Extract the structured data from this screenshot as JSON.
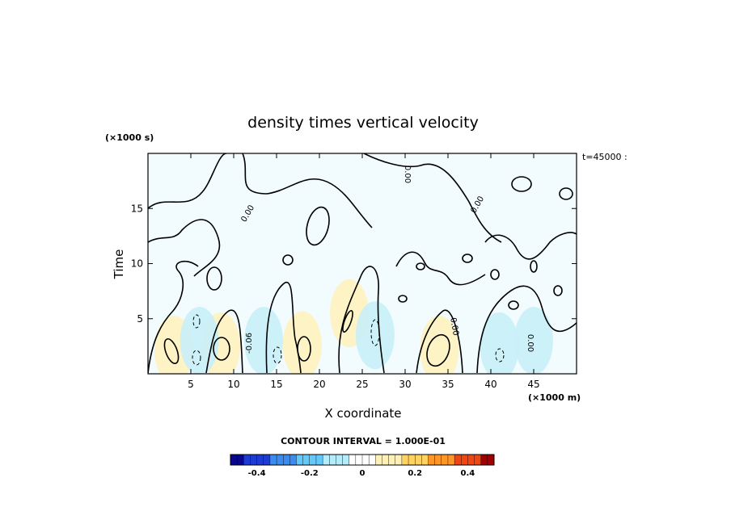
{
  "chart_data": {
    "type": "heatmap",
    "title": "density times vertical velocity",
    "xlabel": "X coordinate",
    "ylabel": "Time",
    "x_unit": "(×1000 m)",
    "y_unit": "(×1000 s)",
    "corner_note": "t=45000 :",
    "xlim": [
      0,
      50
    ],
    "ylim": [
      0,
      20
    ],
    "x_ticks": [
      5,
      10,
      15,
      20,
      25,
      30,
      35,
      40,
      45
    ],
    "y_ticks": [
      5,
      10,
      15
    ],
    "contour_interval_label": "CONTOUR INTERVAL = 1.000E-01",
    "contour_labels": [
      "0.00",
      "0.00",
      "0.00",
      "0.00",
      "0.00",
      "-0.06"
    ],
    "colorbar": {
      "range": [
        -0.5,
        0.5
      ],
      "ticks": [
        "-0.4",
        "-0.2",
        "0",
        "0.2",
        "0.4"
      ],
      "tick_values": [
        -0.4,
        -0.2,
        0,
        0.2,
        0.4
      ],
      "colors_low_to_high": [
        "#08088c",
        "#1e3cd2",
        "#3c8cf0",
        "#64c8f8",
        "#b4ecfa",
        "#ffffff",
        "#fff0b4",
        "#ffd264",
        "#ff9628",
        "#f04614",
        "#a00000"
      ]
    },
    "features": [
      {
        "x": 3,
        "y": 2.2,
        "value": 0.12
      },
      {
        "x": 8.5,
        "y": 2.5,
        "value": 0.15
      },
      {
        "x": 18,
        "y": 2.6,
        "value": 0.14
      },
      {
        "x": 23.5,
        "y": 5.5,
        "value": 0.08
      },
      {
        "x": 34,
        "y": 2.2,
        "value": 0.18
      },
      {
        "x": 6,
        "y": 3.0,
        "value": -0.08
      },
      {
        "x": 13.5,
        "y": 3.0,
        "value": -0.07
      },
      {
        "x": 26.5,
        "y": 3.5,
        "value": -0.1
      },
      {
        "x": 41,
        "y": 2.5,
        "value": -0.08
      },
      {
        "x": 45,
        "y": 3.0,
        "value": -0.05
      }
    ]
  }
}
